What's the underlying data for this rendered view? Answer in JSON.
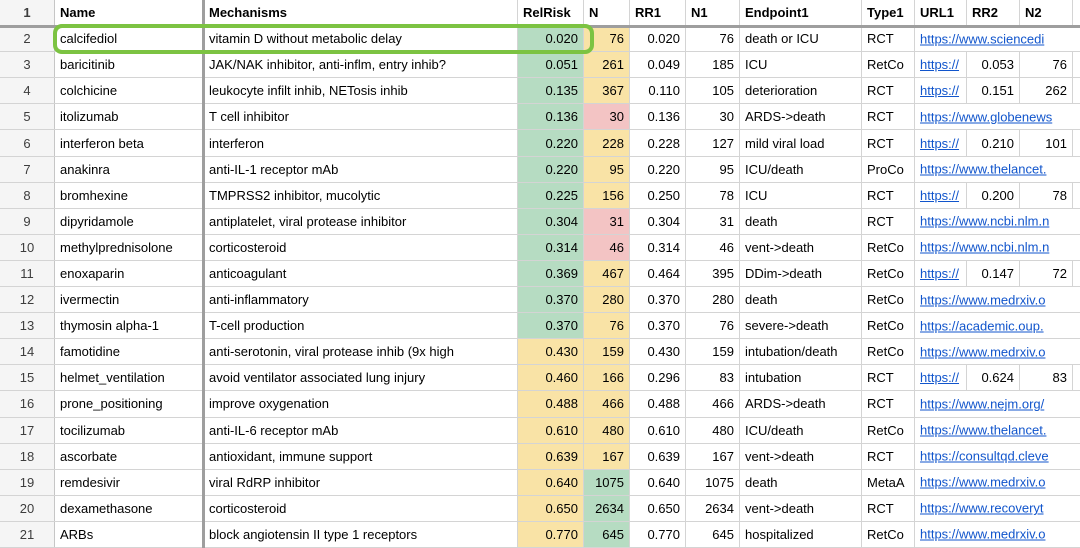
{
  "sheet": {
    "header": {
      "row_number": "1",
      "cells": [
        "Name",
        "Mechanisms",
        "RelRisk",
        "N",
        "RR1",
        "N1",
        "Endpoint1",
        "Type1",
        "URL1",
        "RR2",
        "N2"
      ]
    },
    "rows": [
      {
        "num": "2",
        "name": "calcifediol",
        "mech": "vitamin D without metabolic delay",
        "relrisk": "0.020",
        "relrisk_bg": "green",
        "n": "76",
        "n_bg": "yellow",
        "rr1": "0.020",
        "n1": "76",
        "endpoint": "death or ICU",
        "type": "RCT",
        "url": "https://www.sciencedi",
        "url_overflow": true,
        "rr2": "",
        "n2": "",
        "highlighted": true
      },
      {
        "num": "3",
        "name": "baricitinib",
        "mech": "JAK/NAK inhibitor, anti-inflm, entry inhib?",
        "relrisk": "0.051",
        "relrisk_bg": "green",
        "n": "261",
        "n_bg": "yellow",
        "rr1": "0.049",
        "n1": "185",
        "endpoint": "ICU",
        "type": "RetCo",
        "url": "https://",
        "url_overflow": false,
        "rr2": "0.053",
        "n2": "76"
      },
      {
        "num": "4",
        "name": "colchicine",
        "mech": "leukocyte infilt inhib, NETosis inhib",
        "relrisk": "0.135",
        "relrisk_bg": "green",
        "n": "367",
        "n_bg": "yellow",
        "rr1": "0.110",
        "n1": "105",
        "endpoint": "deterioration",
        "type": "RCT",
        "url": "https://",
        "url_overflow": false,
        "rr2": "0.151",
        "n2": "262"
      },
      {
        "num": "5",
        "name": "itolizumab",
        "mech": "T cell inhibitor",
        "relrisk": "0.136",
        "relrisk_bg": "green",
        "n": "30",
        "n_bg": "pink",
        "rr1": "0.136",
        "n1": "30",
        "endpoint": "ARDS->death",
        "type": "RCT",
        "url": "https://www.globenews",
        "url_overflow": true,
        "rr2": "",
        "n2": ""
      },
      {
        "num": "6",
        "name": "interferon beta",
        "mech": "interferon",
        "relrisk": "0.220",
        "relrisk_bg": "green",
        "n": "228",
        "n_bg": "yellow",
        "rr1": "0.228",
        "n1": "127",
        "endpoint": "mild viral load",
        "type": "RCT",
        "url": "https://",
        "url_overflow": false,
        "rr2": "0.210",
        "n2": "101"
      },
      {
        "num": "7",
        "name": "anakinra",
        "mech": "anti-IL-1 receptor mAb",
        "relrisk": "0.220",
        "relrisk_bg": "green",
        "n": "95",
        "n_bg": "yellow",
        "rr1": "0.220",
        "n1": "95",
        "endpoint": "ICU/death",
        "type": "ProCo",
        "url": "https://www.thelancet.",
        "url_overflow": true,
        "rr2": "",
        "n2": ""
      },
      {
        "num": "8",
        "name": "bromhexine",
        "mech": "TMPRSS2 inhibitor, mucolytic",
        "relrisk": "0.225",
        "relrisk_bg": "green",
        "n": "156",
        "n_bg": "yellow",
        "rr1": "0.250",
        "n1": "78",
        "endpoint": "ICU",
        "type": "RCT",
        "url": "https://",
        "url_overflow": false,
        "rr2": "0.200",
        "n2": "78"
      },
      {
        "num": "9",
        "name": "dipyridamole",
        "mech": "antiplatelet, viral protease inhibitor",
        "relrisk": "0.304",
        "relrisk_bg": "green",
        "n": "31",
        "n_bg": "pink",
        "rr1": "0.304",
        "n1": "31",
        "endpoint": "death",
        "type": "RCT",
        "url": "https://www.ncbi.nlm.n",
        "url_overflow": true,
        "rr2": "",
        "n2": ""
      },
      {
        "num": "10",
        "name": "methylprednisolone",
        "mech": "corticosteroid",
        "relrisk": "0.314",
        "relrisk_bg": "green",
        "n": "46",
        "n_bg": "pink",
        "rr1": "0.314",
        "n1": "46",
        "endpoint": "vent->death",
        "type": "RetCo",
        "url": "https://www.ncbi.nlm.n",
        "url_overflow": true,
        "rr2": "",
        "n2": ""
      },
      {
        "num": "11",
        "name": "enoxaparin",
        "mech": "anticoagulant",
        "relrisk": "0.369",
        "relrisk_bg": "green",
        "n": "467",
        "n_bg": "yellow",
        "rr1": "0.464",
        "n1": "395",
        "endpoint": "DDim->death",
        "type": "RetCo",
        "url": "https://",
        "url_overflow": false,
        "rr2": "0.147",
        "n2": "72"
      },
      {
        "num": "12",
        "name": "ivermectin",
        "mech": "anti-inflammatory",
        "relrisk": "0.370",
        "relrisk_bg": "green",
        "n": "280",
        "n_bg": "yellow",
        "rr1": "0.370",
        "n1": "280",
        "endpoint": "death",
        "type": "RetCo",
        "url": "https://www.medrxiv.o",
        "url_overflow": true,
        "rr2": "",
        "n2": ""
      },
      {
        "num": "13",
        "name": "thymosin alpha-1",
        "mech": "T-cell production",
        "relrisk": "0.370",
        "relrisk_bg": "green",
        "n": "76",
        "n_bg": "yellow",
        "rr1": "0.370",
        "n1": "76",
        "endpoint": "severe->death",
        "type": "RetCo",
        "url": "https://academic.oup.",
        "url_overflow": true,
        "rr2": "",
        "n2": ""
      },
      {
        "num": "14",
        "name": "famotidine",
        "mech": "anti-serotonin, viral protease inhib (9x high",
        "relrisk": "0.430",
        "relrisk_bg": "yellow",
        "n": "159",
        "n_bg": "yellow",
        "rr1": "0.430",
        "n1": "159",
        "endpoint": "intubation/death",
        "type": "RetCo",
        "url": "https://www.medrxiv.o",
        "url_overflow": true,
        "rr2": "",
        "n2": ""
      },
      {
        "num": "15",
        "name": "helmet_ventilation",
        "mech": "avoid ventilator associated lung injury",
        "relrisk": "0.460",
        "relrisk_bg": "yellow",
        "n": "166",
        "n_bg": "yellow",
        "rr1": "0.296",
        "n1": "83",
        "endpoint": "intubation",
        "type": "RCT",
        "url": "https://",
        "url_overflow": false,
        "rr2": "0.624",
        "n2": "83"
      },
      {
        "num": "16",
        "name": "prone_positioning",
        "mech": "improve oxygenation",
        "relrisk": "0.488",
        "relrisk_bg": "yellow",
        "n": "466",
        "n_bg": "yellow",
        "rr1": "0.488",
        "n1": "466",
        "endpoint": "ARDS->death",
        "type": "RCT",
        "url": "https://www.nejm.org/",
        "url_overflow": true,
        "rr2": "",
        "n2": ""
      },
      {
        "num": "17",
        "name": "tocilizumab",
        "mech": "anti-IL-6 receptor mAb",
        "relrisk": "0.610",
        "relrisk_bg": "yellow",
        "n": "480",
        "n_bg": "yellow",
        "rr1": "0.610",
        "n1": "480",
        "endpoint": "ICU/death",
        "type": "RetCo",
        "url": "https://www.thelancet.",
        "url_overflow": true,
        "rr2": "",
        "n2": ""
      },
      {
        "num": "18",
        "name": "ascorbate",
        "mech": "antioxidant, immune support",
        "relrisk": "0.639",
        "relrisk_bg": "yellow",
        "n": "167",
        "n_bg": "yellow",
        "rr1": "0.639",
        "n1": "167",
        "endpoint": "vent->death",
        "type": "RCT",
        "url": "https://consultqd.cleve",
        "url_overflow": true,
        "rr2": "",
        "n2": ""
      },
      {
        "num": "19",
        "name": "remdesivir",
        "mech": "viral RdRP inhibitor",
        "relrisk": "0.640",
        "relrisk_bg": "yellow",
        "n": "1075",
        "n_bg": "green",
        "rr1": "0.640",
        "n1": "1075",
        "endpoint": "death",
        "type": "MetaA",
        "url": "https://www.medrxiv.o",
        "url_overflow": true,
        "rr2": "",
        "n2": ""
      },
      {
        "num": "20",
        "name": "dexamethasone",
        "mech": "corticosteroid",
        "relrisk": "0.650",
        "relrisk_bg": "yellow",
        "n": "2634",
        "n_bg": "green",
        "rr1": "0.650",
        "n1": "2634",
        "endpoint": "vent->death",
        "type": "RCT",
        "url": "https://www.recoveryt",
        "url_overflow": true,
        "rr2": "",
        "n2": ""
      },
      {
        "num": "21",
        "name": "ARBs",
        "mech": "block angiotensin II type 1 receptors",
        "relrisk": "0.770",
        "relrisk_bg": "yellow",
        "n": "645",
        "n_bg": "green",
        "rr1": "0.770",
        "n1": "645",
        "endpoint": "hospitalized",
        "type": "RetCo",
        "url": "https://www.medrxiv.o",
        "url_overflow": true,
        "rr2": "",
        "n2": ""
      }
    ],
    "highlight": {
      "rows": "2",
      "columns": "Name:RelRisk",
      "color": "#7cc342"
    },
    "colors": {
      "cell_green": "#b6dcc2",
      "cell_yellow": "#f9e3a6",
      "cell_pink": "#f3c4c4",
      "link_blue": "#1155cc",
      "highlight_green": "#7cc342",
      "frozen_divider_gray": "#9e9e9e",
      "gridline_gray": "#d4d4d4"
    }
  }
}
